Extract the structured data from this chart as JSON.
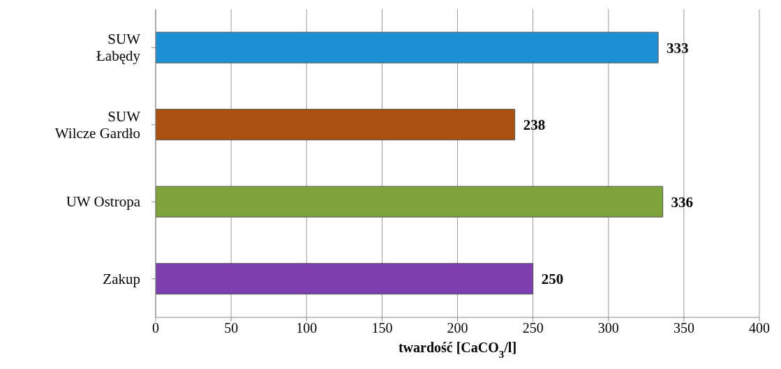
{
  "chart_data": {
    "type": "bar",
    "orientation": "horizontal",
    "categories": [
      "SUW\nŁabędy",
      "SUW\nWilcze Gardło",
      "UW Ostropa",
      "Zakup"
    ],
    "values": [
      333,
      238,
      336,
      250
    ],
    "colors": [
      "#1f8fd8",
      "#a9520f",
      "#7ea33a",
      "#7d3fae"
    ],
    "xlim": [
      0,
      400
    ],
    "xticks": [
      0,
      50,
      100,
      150,
      200,
      250,
      300,
      350,
      400
    ],
    "xlabel": "twardość [CaCO$_{3}$/l]",
    "grid": "x",
    "legend": false,
    "data_labels": true
  }
}
